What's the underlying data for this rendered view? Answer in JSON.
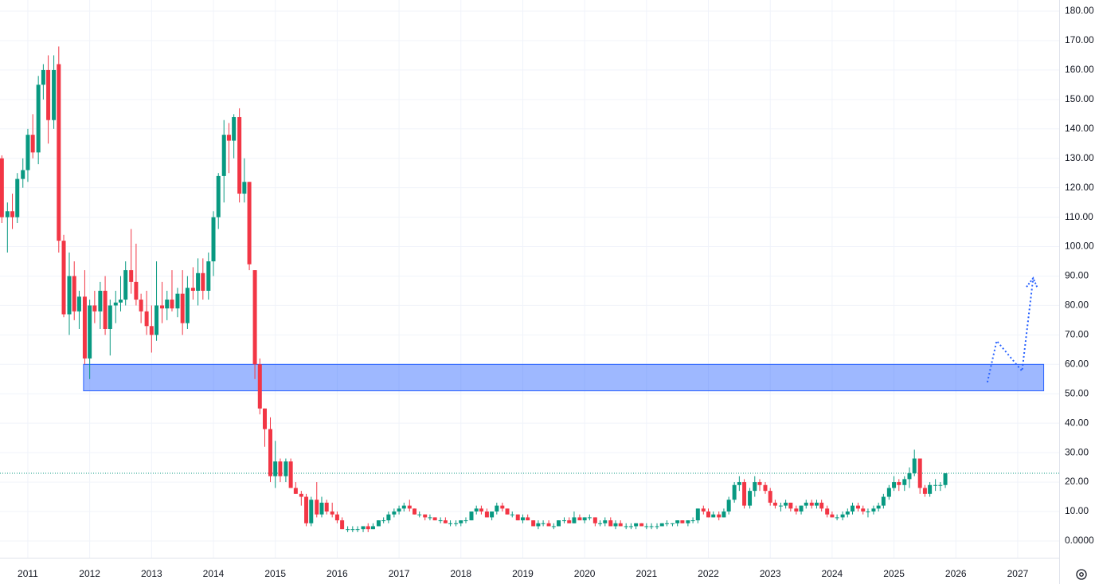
{
  "chart_data": {
    "type": "candlestick",
    "up_color": "#089981",
    "down_color": "#f23645",
    "xlim": [
      2010.55,
      2027.67
    ],
    "xticks": [
      2011,
      2012,
      2013,
      2014,
      2015,
      2016,
      2017,
      2018,
      2019,
      2020,
      2021,
      2022,
      2023,
      2024,
      2025,
      2026,
      2027
    ],
    "ylim": [
      -5.7,
      183.8
    ],
    "yticks": [
      {
        "value": 0,
        "label": "0.0000"
      },
      {
        "value": 10,
        "label": "10.00"
      },
      {
        "value": 20,
        "label": "20.00"
      },
      {
        "value": 30,
        "label": "30.00"
      },
      {
        "value": 40,
        "label": "40.00"
      },
      {
        "value": 50,
        "label": "50.00"
      },
      {
        "value": 60,
        "label": "60.00"
      },
      {
        "value": 70,
        "label": "70.00"
      },
      {
        "value": 80,
        "label": "80.00"
      },
      {
        "value": 90,
        "label": "90.00"
      },
      {
        "value": 100,
        "label": "100.00"
      },
      {
        "value": 110,
        "label": "110.00"
      },
      {
        "value": 120,
        "label": "120.00"
      },
      {
        "value": 130,
        "label": "130.00"
      },
      {
        "value": 140,
        "label": "140.00"
      },
      {
        "value": 150,
        "label": "150.00"
      },
      {
        "value": 160,
        "label": "160.00"
      },
      {
        "value": 170,
        "label": "170.00"
      },
      {
        "value": 180,
        "label": "180.00"
      }
    ],
    "grid": true,
    "price_line": 23,
    "price_line_color": "#089981",
    "zone": {
      "x": [
        2011.9,
        2027.42
      ],
      "y": [
        51,
        60
      ],
      "color": "#2962ff"
    },
    "projection": {
      "x": [
        2026.51,
        2026.66,
        2027.07,
        2027.25
      ],
      "y": [
        53.9,
        68,
        57.7,
        89.3
      ],
      "color": "#2962ff"
    },
    "x": [
      2010.58,
      2010.67,
      2010.75,
      2010.83,
      2010.92,
      2011.0,
      2011.08,
      2011.17,
      2011.25,
      2011.33,
      2011.42,
      2011.5,
      2011.58,
      2011.67,
      2011.75,
      2011.83,
      2011.92,
      2012.0,
      2012.08,
      2012.17,
      2012.25,
      2012.33,
      2012.42,
      2012.5,
      2012.58,
      2012.67,
      2012.75,
      2012.83,
      2012.92,
      2013.0,
      2013.08,
      2013.17,
      2013.25,
      2013.33,
      2013.42,
      2013.5,
      2013.58,
      2013.67,
      2013.75,
      2013.83,
      2013.92,
      2014.0,
      2014.08,
      2014.17,
      2014.25,
      2014.33,
      2014.42,
      2014.5,
      2014.58,
      2014.67,
      2014.75,
      2014.83,
      2014.92,
      2015.0,
      2015.08,
      2015.17,
      2015.25,
      2015.33,
      2015.42,
      2015.5,
      2015.58,
      2015.67,
      2015.75,
      2015.83,
      2015.92,
      2016.0,
      2016.08,
      2016.17,
      2016.25,
      2016.33,
      2016.42,
      2016.5,
      2016.58,
      2016.67,
      2016.75,
      2016.83,
      2016.92,
      2017.0,
      2017.08,
      2017.17,
      2017.25,
      2017.33,
      2017.42,
      2017.5,
      2017.58,
      2017.67,
      2017.75,
      2017.83,
      2017.92,
      2018.0,
      2018.08,
      2018.17,
      2018.25,
      2018.33,
      2018.42,
      2018.5,
      2018.58,
      2018.67,
      2018.75,
      2018.83,
      2018.92,
      2019.0,
      2019.08,
      2019.17,
      2019.25,
      2019.33,
      2019.42,
      2019.5,
      2019.58,
      2019.67,
      2019.75,
      2019.83,
      2019.92,
      2020.0,
      2020.08,
      2020.17,
      2020.25,
      2020.33,
      2020.42,
      2020.5,
      2020.58,
      2020.67,
      2020.75,
      2020.83,
      2020.92,
      2021.0,
      2021.08,
      2021.17,
      2021.25,
      2021.33,
      2021.42,
      2021.5,
      2021.58,
      2021.67,
      2021.75,
      2021.83,
      2021.92,
      2022.0,
      2022.08,
      2022.17,
      2022.25,
      2022.33,
      2022.42,
      2022.5,
      2022.58,
      2022.67,
      2022.75,
      2022.83,
      2022.92,
      2023.0,
      2023.08,
      2023.17,
      2023.25,
      2023.33,
      2023.42,
      2023.5,
      2023.58,
      2023.67,
      2023.75,
      2023.83,
      2023.92,
      2024.0,
      2024.08,
      2024.17,
      2024.25,
      2024.33,
      2024.42,
      2024.5,
      2024.58,
      2024.67,
      2024.75,
      2024.83,
      2024.92,
      2025.0,
      2025.08,
      2025.17,
      2025.25,
      2025.33,
      2025.42,
      2025.5,
      2025.58,
      2025.67,
      2025.75,
      2025.83
    ],
    "ohlc": [
      [
        130,
        131,
        108,
        110
      ],
      [
        110,
        115,
        98,
        112
      ],
      [
        112,
        118,
        106,
        110
      ],
      [
        110,
        125,
        108,
        123
      ],
      [
        123,
        130,
        120,
        126
      ],
      [
        126,
        140,
        122,
        138
      ],
      [
        138,
        145,
        130,
        132
      ],
      [
        132,
        158,
        128,
        155
      ],
      [
        155,
        162,
        150,
        160
      ],
      [
        160,
        165,
        135,
        143
      ],
      [
        143,
        165,
        140,
        160
      ],
      [
        162,
        168,
        98,
        102
      ],
      [
        102,
        104,
        76,
        77
      ],
      [
        77,
        98,
        70,
        90
      ],
      [
        90,
        95,
        75,
        78
      ],
      [
        78,
        85,
        72,
        83
      ],
      [
        83,
        92,
        60,
        62
      ],
      [
        62,
        82,
        55,
        80
      ],
      [
        80,
        85,
        74,
        78
      ],
      [
        78,
        88,
        72,
        85
      ],
      [
        85,
        90,
        70,
        72
      ],
      [
        72,
        82,
        63,
        80
      ],
      [
        80,
        85,
        74,
        81
      ],
      [
        81,
        90,
        78,
        82
      ],
      [
        82,
        95,
        80,
        92
      ],
      [
        92,
        106,
        84,
        88
      ],
      [
        88,
        101,
        80,
        82
      ],
      [
        82,
        84,
        74,
        78
      ],
      [
        78,
        85,
        70,
        73
      ],
      [
        73,
        80,
        64,
        70
      ],
      [
        70,
        95,
        68,
        80
      ],
      [
        80,
        88,
        74,
        79
      ],
      [
        79,
        85,
        75,
        82
      ],
      [
        82,
        92,
        78,
        79
      ],
      [
        79,
        86,
        76,
        84
      ],
      [
        84,
        92,
        70,
        74
      ],
      [
        74,
        90,
        72,
        86
      ],
      [
        86,
        93,
        82,
        85
      ],
      [
        85,
        96,
        80,
        91
      ],
      [
        91,
        96,
        82,
        85
      ],
      [
        85,
        98,
        82,
        95
      ],
      [
        95,
        112,
        90,
        110
      ],
      [
        110,
        125,
        106,
        124
      ],
      [
        124,
        143,
        115,
        138
      ],
      [
        138,
        142,
        125,
        136
      ],
      [
        136,
        145,
        130,
        144
      ],
      [
        144,
        147,
        115,
        118
      ],
      [
        118,
        130,
        115,
        122
      ],
      [
        122,
        122,
        92,
        94
      ],
      [
        92,
        92,
        55,
        60
      ],
      [
        60,
        62,
        43,
        45
      ],
      [
        45,
        45,
        32,
        38
      ],
      [
        38,
        42,
        20,
        22
      ],
      [
        22,
        34,
        18,
        27
      ],
      [
        27,
        28,
        20,
        22
      ],
      [
        22,
        28,
        20,
        27
      ],
      [
        27,
        28,
        18,
        18
      ],
      [
        18,
        20,
        16,
        16
      ],
      [
        16,
        17,
        12,
        15
      ],
      [
        15,
        16,
        5,
        6
      ],
      [
        6,
        15,
        5,
        14
      ],
      [
        14,
        20,
        8,
        9
      ],
      [
        9,
        15,
        8,
        13
      ],
      [
        13,
        14,
        9,
        10
      ],
      [
        10,
        13,
        8,
        9
      ],
      [
        9,
        10,
        6,
        7
      ],
      [
        7,
        8,
        4,
        4
      ],
      [
        4,
        5,
        3,
        4
      ],
      [
        4,
        5,
        3,
        4
      ],
      [
        4,
        5,
        3,
        4
      ],
      [
        4,
        5,
        3,
        5
      ],
      [
        5,
        6,
        3,
        4
      ],
      [
        4,
        6,
        4,
        5
      ],
      [
        5,
        7,
        5,
        7
      ],
      [
        7,
        8,
        6,
        7
      ],
      [
        7,
        10,
        6,
        9
      ],
      [
        9,
        11,
        8,
        10
      ],
      [
        10,
        12,
        9,
        11
      ],
      [
        11,
        13,
        10,
        12
      ],
      [
        12,
        14,
        10,
        11
      ],
      [
        11,
        11,
        9,
        9
      ],
      [
        9,
        10,
        8,
        9
      ],
      [
        9,
        9,
        7,
        8
      ],
      [
        8,
        9,
        7,
        8
      ],
      [
        8,
        8,
        7,
        7
      ],
      [
        7,
        8,
        6,
        7
      ],
      [
        7,
        8,
        6,
        6
      ],
      [
        6,
        7,
        5,
        6
      ],
      [
        6,
        7,
        5,
        6
      ],
      [
        6,
        7,
        5,
        7
      ],
      [
        7,
        8,
        6,
        7
      ],
      [
        7,
        10,
        7,
        10
      ],
      [
        10,
        12,
        9,
        11
      ],
      [
        11,
        12,
        9,
        10
      ],
      [
        10,
        11,
        8,
        8
      ],
      [
        8,
        10,
        7,
        10
      ],
      [
        10,
        13,
        9,
        12
      ],
      [
        12,
        13,
        10,
        11
      ],
      [
        11,
        11,
        9,
        9
      ],
      [
        9,
        10,
        8,
        9
      ],
      [
        9,
        9,
        7,
        7
      ],
      [
        7,
        9,
        6,
        8
      ],
      [
        8,
        9,
        7,
        7
      ],
      [
        7,
        7,
        5,
        5
      ],
      [
        5,
        7,
        4,
        6
      ],
      [
        6,
        7,
        5,
        6
      ],
      [
        6,
        7,
        5,
        5
      ],
      [
        5,
        6,
        4,
        5
      ],
      [
        5,
        7,
        5,
        7
      ],
      [
        7,
        8,
        6,
        7
      ],
      [
        7,
        8,
        6,
        6
      ],
      [
        6,
        10,
        6,
        8
      ],
      [
        8,
        9,
        7,
        7
      ],
      [
        7,
        8,
        6,
        8
      ],
      [
        8,
        9,
        7,
        8
      ],
      [
        8,
        8,
        5,
        6
      ],
      [
        6,
        7,
        5,
        6
      ],
      [
        6,
        8,
        5,
        7
      ],
      [
        7,
        8,
        5,
        5
      ],
      [
        5,
        7,
        4,
        6
      ],
      [
        6,
        7,
        5,
        5
      ],
      [
        5,
        6,
        4,
        5
      ],
      [
        5,
        6,
        4,
        5
      ],
      [
        5,
        6,
        4,
        6
      ],
      [
        6,
        6,
        5,
        5
      ],
      [
        5,
        6,
        4,
        5
      ],
      [
        5,
        6,
        4,
        5
      ],
      [
        5,
        6,
        4,
        5
      ],
      [
        5,
        6,
        5,
        6
      ],
      [
        6,
        7,
        5,
        6
      ],
      [
        6,
        6,
        5,
        6
      ],
      [
        6,
        7,
        5,
        7
      ],
      [
        7,
        7,
        6,
        6
      ],
      [
        6,
        7,
        5,
        7
      ],
      [
        7,
        8,
        6,
        7
      ],
      [
        7,
        11,
        6,
        11
      ],
      [
        11,
        12,
        9,
        10
      ],
      [
        10,
        11,
        8,
        8
      ],
      [
        8,
        10,
        8,
        9
      ],
      [
        9,
        10,
        7,
        8
      ],
      [
        8,
        11,
        8,
        10
      ],
      [
        10,
        15,
        9,
        14
      ],
      [
        14,
        20,
        13,
        19
      ],
      [
        19,
        22,
        17,
        20
      ],
      [
        20,
        21,
        11,
        12
      ],
      [
        12,
        18,
        11,
        17
      ],
      [
        17,
        22,
        15,
        20
      ],
      [
        20,
        21,
        17,
        19
      ],
      [
        19,
        20,
        16,
        17
      ],
      [
        17,
        18,
        12,
        13
      ],
      [
        13,
        14,
        11,
        12
      ],
      [
        12,
        13,
        10,
        12
      ],
      [
        12,
        14,
        11,
        13
      ],
      [
        13,
        13,
        10,
        11
      ],
      [
        11,
        12,
        9,
        10
      ],
      [
        10,
        12,
        9,
        12
      ],
      [
        12,
        14,
        11,
        13
      ],
      [
        13,
        14,
        11,
        12
      ],
      [
        12,
        14,
        11,
        13
      ],
      [
        13,
        14,
        10,
        11
      ],
      [
        11,
        12,
        8,
        9
      ],
      [
        9,
        10,
        8,
        8
      ],
      [
        8,
        9,
        7,
        8
      ],
      [
        8,
        10,
        7,
        9
      ],
      [
        9,
        11,
        8,
        10
      ],
      [
        10,
        13,
        9,
        12
      ],
      [
        12,
        13,
        10,
        11
      ],
      [
        11,
        12,
        9,
        10
      ],
      [
        10,
        11,
        8,
        10
      ],
      [
        10,
        12,
        9,
        11
      ],
      [
        11,
        13,
        10,
        12
      ],
      [
        12,
        16,
        11,
        15
      ],
      [
        15,
        19,
        14,
        18
      ],
      [
        18,
        22,
        17,
        20
      ],
      [
        20,
        21,
        17,
        19
      ],
      [
        19,
        22,
        17,
        21
      ],
      [
        21,
        25,
        18,
        23
      ],
      [
        23,
        31,
        22,
        28
      ],
      [
        28,
        28,
        16,
        18
      ],
      [
        18,
        19,
        15,
        16
      ],
      [
        16,
        20,
        15,
        19
      ],
      [
        19,
        21,
        17,
        19
      ],
      [
        19,
        20,
        17,
        19
      ],
      [
        19,
        23,
        18,
        23
      ]
    ]
  }
}
